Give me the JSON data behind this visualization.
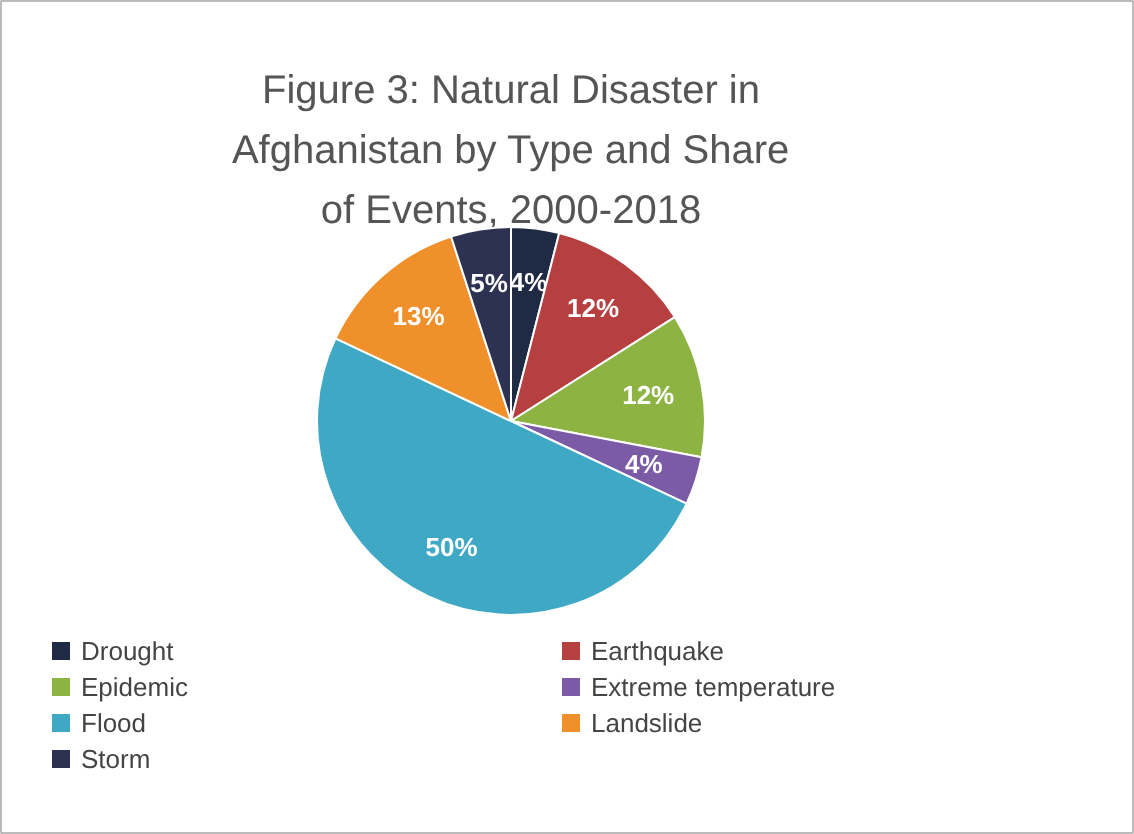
{
  "chart_data": {
    "type": "pie",
    "title": "Figure 3: Natural Disaster in Afghanistan by Type and Share of Events, 2000-2018",
    "categories": [
      "Drought",
      "Earthquake",
      "Epidemic",
      "Extreme temperature",
      "Flood",
      "Landslide",
      "Storm"
    ],
    "values": [
      4,
      12,
      12,
      4,
      50,
      13,
      5
    ],
    "value_labels": [
      "4%",
      "12%",
      "12%",
      "4%",
      "50%",
      "13%",
      "5%"
    ],
    "colors": [
      "#1f2a44",
      "#b5403f",
      "#8db443",
      "#7b5ba6",
      "#3fa9c5",
      "#f0902a",
      "#2d3252"
    ],
    "legend": "bottom"
  }
}
